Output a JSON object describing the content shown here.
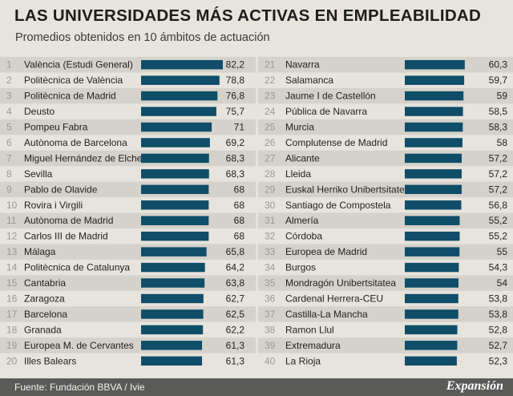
{
  "header": {
    "title": "LAS UNIVERSIDADES MÁS ACTIVAS EN EMPLEABILIDAD",
    "subtitle": "Promedios obtenidos en 10 ámbitos de actuación"
  },
  "footer": {
    "source": "Fuente: Fundación BBVA / Ivie",
    "brand": "Expansión"
  },
  "colors": {
    "bar": "#0f4d68",
    "background": "#e6e4dd",
    "row_band": "#d4d2cb",
    "footer": "#5a5a58"
  },
  "chart_data": {
    "type": "bar",
    "orientation": "horizontal",
    "title": "LAS UNIVERSIDADES MÁS ACTIVAS EN EMPLEABILIDAD",
    "subtitle": "Promedios obtenidos en 10 ámbitos de actuación",
    "xlim": [
      0,
      82.2
    ],
    "columns": [
      {
        "ranks": [
          "1",
          "2",
          "3",
          "4",
          "5",
          "6",
          "7",
          "8",
          "9",
          "10",
          "11",
          "12",
          "13",
          "14",
          "15",
          "16",
          "17",
          "18",
          "19",
          "20"
        ],
        "categories": [
          "València (Estudi General)",
          "Politècnica de València",
          "Politècnica de Madrid",
          "Deusto",
          "Pompeu Fabra",
          "Autònoma de Barcelona",
          "Miguel Hernández de Elche",
          "Sevilla",
          "Pablo de Olavide",
          "Rovira i Virgili",
          "Autònoma de Madrid",
          "Carlos III de Madrid",
          "Málaga",
          "Politècnica de Catalunya",
          "Cantabria",
          "Zaragoza",
          "Barcelona",
          "Granada",
          "Europea M. de Cervantes",
          "Illes Balears"
        ],
        "values": [
          82.2,
          78.8,
          76.8,
          75.7,
          71,
          69.2,
          68.3,
          68.3,
          68,
          68,
          68,
          68,
          65.8,
          64.2,
          63.8,
          62.7,
          62.5,
          62.2,
          61.3,
          61.3
        ],
        "labels": [
          "82,2",
          "78,8",
          "76,8",
          "75,7",
          "71",
          "69,2",
          "68,3",
          "68,3",
          "68",
          "68",
          "68",
          "68",
          "65,8",
          "64,2",
          "63,8",
          "62,7",
          "62,5",
          "62,2",
          "61,3",
          "61,3"
        ]
      },
      {
        "ranks": [
          "21",
          "22",
          "23",
          "24",
          "25",
          "26",
          "27",
          "28",
          "29",
          "30",
          "31",
          "32",
          "33",
          "34",
          "35",
          "36",
          "37",
          "38",
          "39",
          "40"
        ],
        "categories": [
          "Navarra",
          "Salamanca",
          "Jaume I de Castellón",
          "Pública de Navarra",
          "Murcia",
          "Complutense de Madrid",
          "Alicante",
          "Lleida",
          "Euskal Herriko Unibertsitatea",
          "Santiago de Compostela",
          "Almería",
          "Córdoba",
          "Europea de Madrid",
          "Burgos",
          "Mondragón Unibertsitatea",
          "Cardenal Herrera-CEU",
          "Castilla-La Mancha",
          "Ramon Llul",
          "Extremadura",
          "La Rioja"
        ],
        "values": [
          60.3,
          59.7,
          59,
          58.5,
          58.3,
          58,
          57.2,
          57.2,
          57.2,
          56.8,
          55.2,
          55.2,
          55,
          54.3,
          54,
          53.8,
          53.8,
          52.8,
          52.7,
          52.3
        ],
        "labels": [
          "60,3",
          "59,7",
          "59",
          "58,5",
          "58,3",
          "58",
          "57,2",
          "57,2",
          "57,2",
          "56,8",
          "55,2",
          "55,2",
          "55",
          "54,3",
          "54",
          "53,8",
          "53,8",
          "52,8",
          "52,7",
          "52,3"
        ]
      }
    ]
  }
}
